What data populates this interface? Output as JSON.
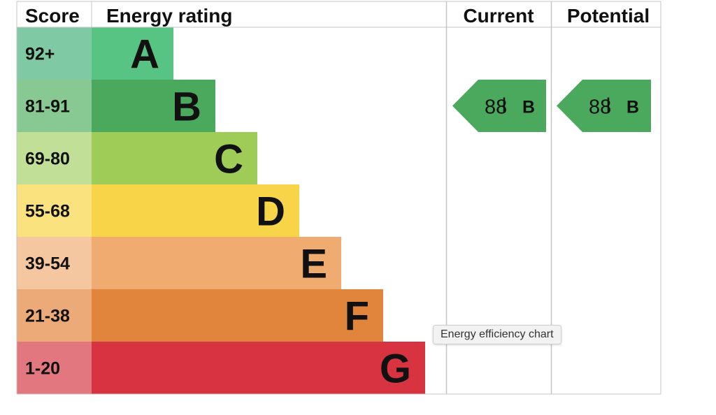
{
  "chart_data": {
    "type": "bar",
    "headers": {
      "score": "Score",
      "rating": "Energy rating",
      "current": "Current",
      "potential": "Potential"
    },
    "bands": [
      {
        "letter": "A",
        "range": "92+",
        "min": 92,
        "max": 100,
        "color": "#58c483",
        "score_bg": "#7fc9a5"
      },
      {
        "letter": "B",
        "range": "81-91",
        "min": 81,
        "max": 91,
        "color": "#4ba95e",
        "score_bg": "#88c993"
      },
      {
        "letter": "C",
        "range": "69-80",
        "min": 69,
        "max": 80,
        "color": "#9fcb57",
        "score_bg": "#c2df98"
      },
      {
        "letter": "D",
        "range": "55-68",
        "min": 55,
        "max": 68,
        "color": "#f8d448",
        "score_bg": "#fae37e"
      },
      {
        "letter": "E",
        "range": "39-54",
        "min": 39,
        "max": 54,
        "color": "#f0ac70",
        "score_bg": "#f5c7a0"
      },
      {
        "letter": "F",
        "range": "21-38",
        "min": 21,
        "max": 38,
        "color": "#e0853b",
        "score_bg": "#ebaa77"
      },
      {
        "letter": "G",
        "range": "1-20",
        "min": 1,
        "max": 20,
        "color": "#d73340",
        "score_bg": "#e27780"
      }
    ],
    "current": {
      "value": "88",
      "letter": "B",
      "color": "#4ba95e"
    },
    "potential": {
      "value": "88",
      "letter": "B",
      "color": "#4ba95e"
    }
  },
  "tooltip": "Energy efficiency chart"
}
